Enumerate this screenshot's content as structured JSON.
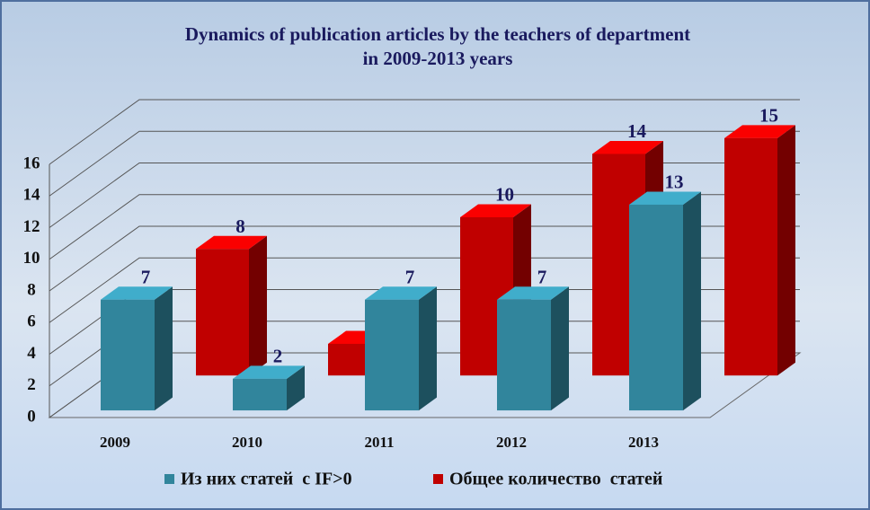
{
  "chart_data": {
    "type": "bar3d",
    "title": [
      "Dynamics of publication articles  by the  teachers of department",
      "in 2009-2013 years"
    ],
    "categories": [
      "2009",
      "2010",
      "2011",
      "2012",
      "2013"
    ],
    "series": [
      {
        "name": "Из них статей  с IF>0",
        "color": "#31859c",
        "values": [
          7,
          2,
          7,
          7,
          13
        ]
      },
      {
        "name": "Общее количество  статей",
        "color": "#c00000",
        "values": [
          8,
          2,
          10,
          14,
          15
        ]
      }
    ],
    "ylim": [
      0,
      16
    ],
    "yticks": [
      0,
      2,
      4,
      6,
      8,
      10,
      12,
      14,
      16
    ],
    "grid": true,
    "legend": "bottom"
  }
}
